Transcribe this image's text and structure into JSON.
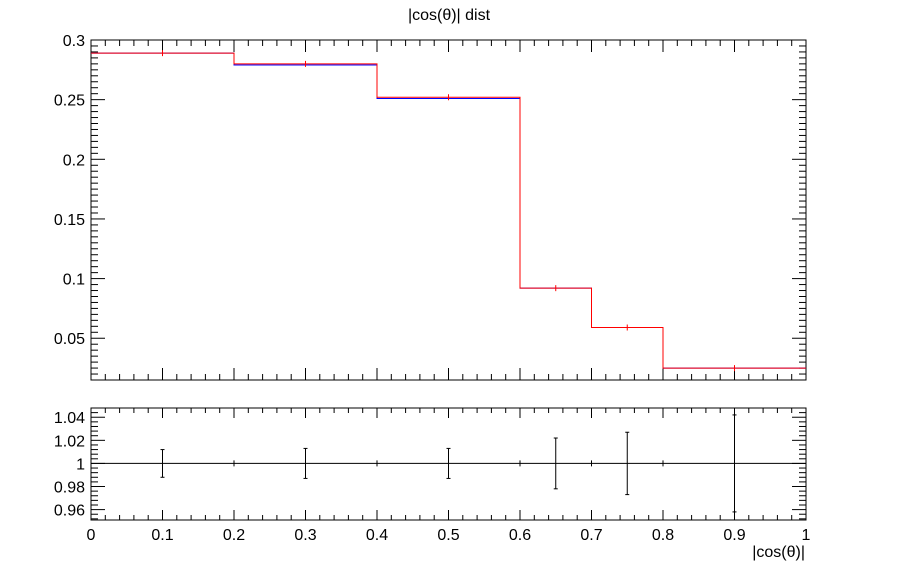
{
  "chart_data": [
    {
      "type": "step",
      "title": "|cos(θ)| dist",
      "xlabel": "",
      "ylabel": "",
      "xlim": [
        0,
        1
      ],
      "ylim": [
        0.015,
        0.3
      ],
      "yticks": [
        0.05,
        0.1,
        0.15,
        0.2,
        0.25,
        0.3
      ],
      "ytick_labels": [
        "0.05",
        "0.1",
        "0.15",
        "0.2",
        "0.25",
        "0.3"
      ],
      "bin_edges": [
        0,
        0.2,
        0.4,
        0.6,
        0.7,
        0.8,
        1.0
      ],
      "series": [
        {
          "color": "#0000ff",
          "values": [
            0.289,
            0.279,
            0.251,
            0.092,
            0.059,
            0.025
          ]
        },
        {
          "color": "#ff0000",
          "values": [
            0.289,
            0.28,
            0.252,
            0.092,
            0.059,
            0.025
          ],
          "errors": [
            0.0015,
            0.0015,
            0.0015,
            0.0008,
            0.0006,
            0.0004
          ]
        }
      ]
    },
    {
      "type": "errorbar",
      "xlabel": "|cos(θ)|",
      "xlim": [
        0,
        1
      ],
      "ylim": [
        0.951,
        1.048
      ],
      "xticks": [
        0,
        0.1,
        0.2,
        0.3,
        0.4,
        0.5,
        0.6,
        0.7,
        0.8,
        0.9,
        1
      ],
      "xtick_labels": [
        "0",
        "0.1",
        "0.2",
        "0.3",
        "0.4",
        "0.5",
        "0.6",
        "0.7",
        "0.8",
        "0.9",
        "1"
      ],
      "yticks": [
        0.96,
        0.98,
        1,
        1.02,
        1.04
      ],
      "ytick_labels": [
        "0.96",
        "0.98",
        "1",
        "1.02",
        "1.04"
      ],
      "reference_line": 1,
      "points": [
        {
          "x": 0.1,
          "y": 1,
          "err": 0.012
        },
        {
          "x": 0.3,
          "y": 1,
          "err": 0.013
        },
        {
          "x": 0.5,
          "y": 1,
          "err": 0.013
        },
        {
          "x": 0.65,
          "y": 1,
          "err": 0.022
        },
        {
          "x": 0.75,
          "y": 1,
          "err": 0.027
        },
        {
          "x": 0.9,
          "y": 1,
          "err": 0.042
        }
      ],
      "marks_at_edges": [
        0.2,
        0.4,
        0.6,
        0.7,
        0.8
      ]
    }
  ]
}
